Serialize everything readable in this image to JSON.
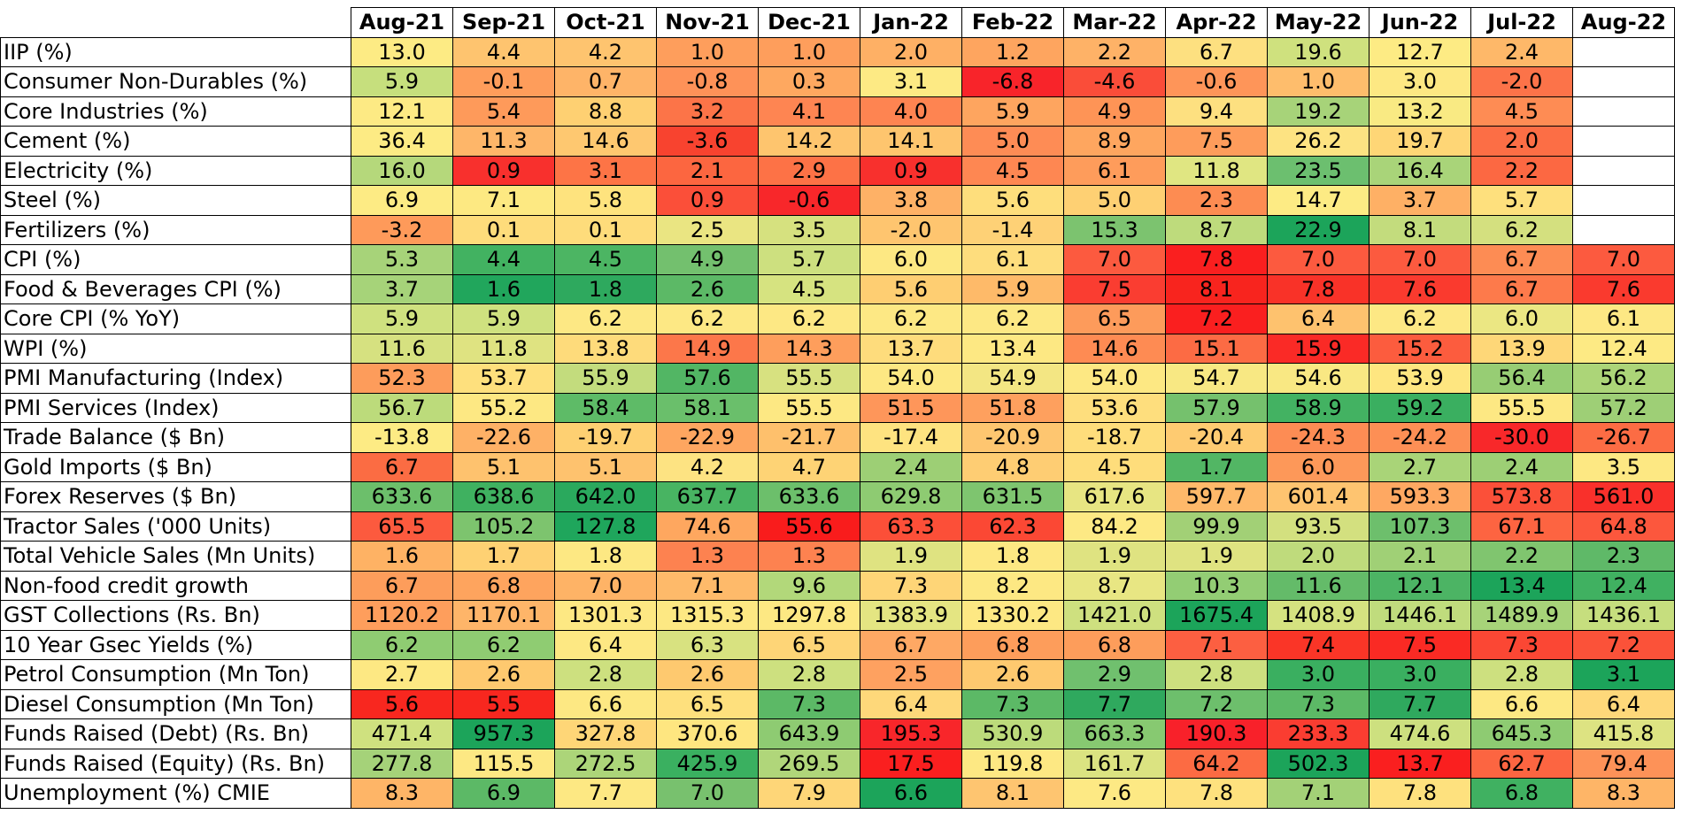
{
  "chart_data": {
    "type": "heatmap",
    "columns": [
      "Aug-21",
      "Sep-21",
      "Oct-21",
      "Nov-21",
      "Dec-21",
      "Jan-22",
      "Feb-22",
      "Mar-22",
      "Apr-22",
      "May-22",
      "Jun-22",
      "Jul-22",
      "Aug-22"
    ],
    "rows": [
      {
        "label": "IIP (%)",
        "values": [
          "13.0",
          "4.4",
          "4.2",
          "1.0",
          "1.0",
          "2.0",
          "1.2",
          "2.2",
          "6.7",
          "19.6",
          "12.7",
          "2.4",
          ""
        ],
        "colors": [
          "#fdeb84",
          "#fec46f",
          "#fec46f",
          "#fe9e5c",
          "#fe9e5c",
          "#feb065",
          "#fea55f",
          "#feb267",
          "#fde080",
          "#cfe17e",
          "#fdeb84",
          "#feb869",
          "#ffffff"
        ]
      },
      {
        "label": "Consumer Non-Durables (%)",
        "values": [
          "5.9",
          "-0.1",
          "0.7",
          "-0.8",
          "0.3",
          "3.1",
          "-6.8",
          "-4.6",
          "-0.6",
          "1.0",
          "3.0",
          "-2.0",
          ""
        ],
        "colors": [
          "#c6df7d",
          "#fe9d5b",
          "#feb468",
          "#fe9258",
          "#fea860",
          "#fdea84",
          "#f8242a",
          "#fa4d39",
          "#fe9559",
          "#febd6c",
          "#fde883",
          "#fc7349",
          "#ffffff"
        ]
      },
      {
        "label": "Core Industries (%)",
        "values": [
          "12.1",
          "5.4",
          "8.8",
          "3.2",
          "4.1",
          "4.0",
          "5.9",
          "4.9",
          "9.4",
          "19.2",
          "13.2",
          "4.5",
          ""
        ],
        "colors": [
          "#fdea84",
          "#fe9a5a",
          "#fed072",
          "#fc7448",
          "#fe8552",
          "#fe8451",
          "#fea55f",
          "#fe9456",
          "#fde080",
          "#a7d379",
          "#f9ea83",
          "#fe8c54",
          "#ffffff"
        ]
      },
      {
        "label": "Cement (%)",
        "values": [
          "36.4",
          "11.3",
          "14.6",
          "-3.6",
          "14.2",
          "14.1",
          "5.0",
          "8.9",
          "7.5",
          "26.2",
          "19.7",
          "2.0",
          ""
        ],
        "colors": [
          "#fdeb84",
          "#feb669",
          "#fec870",
          "#f8432f",
          "#fec56e",
          "#fec56e",
          "#fe8c55",
          "#fea65f",
          "#fe9c5b",
          "#fde382",
          "#fed676",
          "#fc6e45",
          "#ffffff"
        ]
      },
      {
        "label": "Electricity (%)",
        "values": [
          "16.0",
          "0.9",
          "3.1",
          "2.1",
          "2.9",
          "0.9",
          "4.5",
          "6.1",
          "11.8",
          "23.5",
          "16.4",
          "2.2",
          ""
        ],
        "colors": [
          "#b5d87b",
          "#f8302d",
          "#fd7446",
          "#fc6640",
          "#fd7246",
          "#f8302d",
          "#fe8752",
          "#fe9c5b",
          "#e0e682",
          "#6cbf6f",
          "#a9d479",
          "#fc6842",
          "#ffffff"
        ]
      },
      {
        "label": "Steel (%)",
        "values": [
          "6.9",
          "7.1",
          "5.8",
          "0.9",
          "-0.6",
          "3.8",
          "5.6",
          "5.0",
          "2.3",
          "14.7",
          "3.7",
          "5.7",
          ""
        ],
        "colors": [
          "#fdeb84",
          "#fde982",
          "#fee37e",
          "#fb4f39",
          "#f8272a",
          "#feb166",
          "#fede7c",
          "#fed073",
          "#fd8c52",
          "#fdeb84",
          "#feb065",
          "#fee07d",
          "#ffffff"
        ]
      },
      {
        "label": "Fertilizers (%)",
        "values": [
          "-3.2",
          "0.1",
          "0.1",
          "2.5",
          "3.5",
          "-2.0",
          "-1.4",
          "15.3",
          "8.7",
          "22.9",
          "8.1",
          "6.2",
          ""
        ],
        "colors": [
          "#fe9a5a",
          "#fedc7b",
          "#fedc7b",
          "#eae582",
          "#d6e17f",
          "#fec56f",
          "#fed176",
          "#7cc36f",
          "#bedb7c",
          "#1ca45a",
          "#c3dc7d",
          "#d4e07f",
          "#ffffff"
        ]
      },
      {
        "label": "CPI (%)",
        "values": [
          "5.3",
          "4.4",
          "4.5",
          "4.9",
          "5.7",
          "6.0",
          "6.1",
          "7.0",
          "7.8",
          "7.0",
          "7.0",
          "6.7",
          "7.0"
        ],
        "colors": [
          "#a7d379",
          "#42b261",
          "#4cb563",
          "#73c06e",
          "#cde07f",
          "#fde883",
          "#fedd7d",
          "#fc5a3f",
          "#fa1f1f",
          "#fc5a3f",
          "#fc5a3f",
          "#fd8c54",
          "#fc5a3f"
        ]
      },
      {
        "label": "Food & Beverages CPI (%)",
        "values": [
          "3.7",
          "1.6",
          "1.8",
          "2.6",
          "4.5",
          "5.6",
          "5.9",
          "7.5",
          "8.1",
          "7.8",
          "7.6",
          "6.7",
          "7.6"
        ],
        "colors": [
          "#a6d379",
          "#21a65c",
          "#2ea95e",
          "#5cb966",
          "#d6e380",
          "#fece72",
          "#feba69",
          "#fa3d31",
          "#f8241e",
          "#f93228",
          "#fa3a2e",
          "#fd7a4b",
          "#fa3a2e"
        ]
      },
      {
        "label": "Core CPI (% YoY)",
        "values": [
          "5.9",
          "5.9",
          "6.2",
          "6.2",
          "6.2",
          "6.2",
          "6.2",
          "6.5",
          "7.2",
          "6.4",
          "6.2",
          "6.0",
          "6.1"
        ],
        "colors": [
          "#cfe17f",
          "#cfe17f",
          "#fde884",
          "#fde884",
          "#fde884",
          "#fde884",
          "#fde884",
          "#fd9b5b",
          "#fa1f1f",
          "#fec26e",
          "#fde884",
          "#ebe783",
          "#fde884"
        ]
      },
      {
        "label": "WPI (%)",
        "values": [
          "11.6",
          "11.8",
          "13.8",
          "14.9",
          "14.3",
          "13.7",
          "13.4",
          "14.6",
          "15.1",
          "15.9",
          "15.2",
          "13.9",
          "12.4"
        ],
        "colors": [
          "#d6e180",
          "#dfe381",
          "#fedb7b",
          "#fc774a",
          "#fe9e5c",
          "#fedc7c",
          "#fde883",
          "#fe8b53",
          "#fc6b44",
          "#fa2a26",
          "#fc5c3e",
          "#fed778",
          "#fdea84"
        ]
      },
      {
        "label": "PMI Manufacturing (Index)",
        "values": [
          "52.3",
          "53.7",
          "55.9",
          "57.6",
          "55.5",
          "54.0",
          "54.9",
          "54.0",
          "54.7",
          "54.6",
          "53.9",
          "56.4",
          "56.2"
        ],
        "colors": [
          "#fd9c5b",
          "#fee07d",
          "#c3dc7d",
          "#52b664",
          "#d7e180",
          "#fde883",
          "#f3e683",
          "#fde883",
          "#f8e883",
          "#f9e883",
          "#fee680",
          "#97cd74",
          "#acd578"
        ]
      },
      {
        "label": "PMI Services (Index)",
        "values": [
          "56.7",
          "55.2",
          "58.4",
          "58.1",
          "55.5",
          "51.5",
          "51.8",
          "53.6",
          "57.9",
          "58.9",
          "59.2",
          "55.5",
          "57.2"
        ],
        "colors": [
          "#bcdb7b",
          "#fde883",
          "#5ebb67",
          "#6abf6b",
          "#fde883",
          "#fe965a",
          "#fea05e",
          "#fede7d",
          "#75c16d",
          "#43b262",
          "#3aaf60",
          "#fde883",
          "#9ecf76"
        ]
      },
      {
        "label": "Trade Balance ($ Bn)",
        "values": [
          "-13.8",
          "-22.6",
          "-19.7",
          "-22.9",
          "-21.7",
          "-17.4",
          "-20.9",
          "-18.7",
          "-20.4",
          "-24.3",
          "-24.2",
          "-30.0",
          "-26.7"
        ],
        "colors": [
          "#fdeb84",
          "#feb166",
          "#fed072",
          "#fea660",
          "#fec06c",
          "#fee380",
          "#fec670",
          "#fedd7b",
          "#fecb71",
          "#fd8c54",
          "#fd8f55",
          "#f8282a",
          "#fc6c44"
        ]
      },
      {
        "label": "Gold Imports ($ Bn)",
        "values": [
          "6.7",
          "5.1",
          "5.1",
          "4.2",
          "4.7",
          "2.4",
          "4.8",
          "4.5",
          "1.7",
          "6.0",
          "2.7",
          "2.4",
          "3.5"
        ],
        "colors": [
          "#fb6c43",
          "#fec26e",
          "#fec26e",
          "#fde382",
          "#fed375",
          "#9dcf75",
          "#fecd73",
          "#fedd7b",
          "#52b664",
          "#fd9859",
          "#a9d478",
          "#9dcf75",
          "#fde883"
        ]
      },
      {
        "label": "Forex Reserves ($ Bn)",
        "values": [
          "633.6",
          "638.6",
          "642.0",
          "637.7",
          "633.6",
          "629.8",
          "631.5",
          "617.6",
          "597.7",
          "601.4",
          "593.3",
          "573.8",
          "561.0"
        ],
        "colors": [
          "#6cbf6b",
          "#3fb160",
          "#2aa95d",
          "#48b462",
          "#6cbf6b",
          "#8ecb72",
          "#7ec56f",
          "#e7e582",
          "#feb96a",
          "#fec470",
          "#fea862",
          "#fb5039",
          "#f9302b"
        ]
      },
      {
        "label": "Tractor Sales ('000 Units)",
        "values": [
          "65.5",
          "105.2",
          "127.8",
          "74.6",
          "55.6",
          "63.3",
          "62.3",
          "84.2",
          "99.9",
          "93.5",
          "107.3",
          "67.1",
          "64.8"
        ],
        "colors": [
          "#fc5a3e",
          "#7dc46e",
          "#1fa65c",
          "#fea75f",
          "#f91c1c",
          "#fc4f38",
          "#fb4834",
          "#fde984",
          "#a2d076",
          "#d3e07f",
          "#6dbf6c",
          "#fd6441",
          "#fc573d"
        ]
      },
      {
        "label": "Total Vehicle Sales (Mn Units)",
        "values": [
          "1.6",
          "1.7",
          "1.8",
          "1.3",
          "1.3",
          "1.9",
          "1.8",
          "1.9",
          "1.9",
          "2.0",
          "2.1",
          "2.2",
          "2.3"
        ],
        "colors": [
          "#feb264",
          "#fed173",
          "#fde883",
          "#fd8250",
          "#fd8250",
          "#dfe381",
          "#fde883",
          "#dfe381",
          "#dfe381",
          "#bfdb7c",
          "#a0d076",
          "#80c56f",
          "#5fb968"
        ]
      },
      {
        "label": "Non-food credit growth",
        "values": [
          "6.7",
          "6.8",
          "7.0",
          "7.1",
          "9.6",
          "7.3",
          "8.2",
          "8.7",
          "10.3",
          "11.6",
          "12.1",
          "13.4",
          "12.4"
        ],
        "colors": [
          "#fd9d5b",
          "#fea45e",
          "#feb366",
          "#feba6a",
          "#b2d87a",
          "#fed577",
          "#fde883",
          "#e8e683",
          "#93cd74",
          "#64bb69",
          "#4cb464",
          "#1ca45a",
          "#40b161"
        ]
      },
      {
        "label": "GST Collections (Rs. Bn)",
        "values": [
          "1120.2",
          "1170.1",
          "1301.3",
          "1315.3",
          "1297.8",
          "1383.9",
          "1330.2",
          "1421.0",
          "1675.4",
          "1408.9",
          "1446.1",
          "1489.9",
          "1436.1"
        ],
        "colors": [
          "#fe9e5c",
          "#feb569",
          "#fde883",
          "#fde883",
          "#fde883",
          "#e4e582",
          "#fde883",
          "#cee07f",
          "#1ca45a",
          "#d5e280",
          "#c0dc7d",
          "#a7d379",
          "#c6de7e"
        ]
      },
      {
        "label": "10 Year Gsec Yields (%)",
        "values": [
          "6.2",
          "6.2",
          "6.4",
          "6.3",
          "6.5",
          "6.7",
          "6.8",
          "6.8",
          "7.1",
          "7.4",
          "7.5",
          "7.3",
          "7.2"
        ],
        "colors": [
          "#8fcc72",
          "#8fcc72",
          "#fde883",
          "#d8e280",
          "#fed577",
          "#fea864",
          "#fd9d5b",
          "#fd9d5b",
          "#fc5f41",
          "#fa3527",
          "#fa2a24",
          "#fb4734",
          "#fb5239"
        ]
      },
      {
        "label": "Petrol Consumption (Mn Ton)",
        "values": [
          "2.7",
          "2.6",
          "2.8",
          "2.6",
          "2.8",
          "2.5",
          "2.6",
          "2.9",
          "2.8",
          "3.0",
          "3.0",
          "2.8",
          "3.1"
        ],
        "colors": [
          "#fde883",
          "#fec96f",
          "#cde07f",
          "#fec96f",
          "#cde07f",
          "#fea160",
          "#fec96f",
          "#70c06e",
          "#cde07f",
          "#3aaf60",
          "#3aaf60",
          "#cde07f",
          "#1ca45a"
        ]
      },
      {
        "label": "Diesel Consumption (Mn Ton)",
        "values": [
          "5.6",
          "5.5",
          "6.6",
          "6.5",
          "7.3",
          "6.4",
          "7.3",
          "7.7",
          "7.2",
          "7.3",
          "7.7",
          "6.6",
          "6.4"
        ],
        "colors": [
          "#f8271f",
          "#f8271f",
          "#fde883",
          "#fee07d",
          "#5cb966",
          "#fed87a",
          "#5cb966",
          "#2fa95e",
          "#6dbf6c",
          "#5cb966",
          "#2fa95e",
          "#fde883",
          "#fed87a"
        ]
      },
      {
        "label": "Funds Raised (Debt) (Rs. Bn)",
        "values": [
          "471.4",
          "957.3",
          "327.8",
          "370.6",
          "643.9",
          "195.3",
          "530.9",
          "663.3",
          "190.3",
          "233.3",
          "474.6",
          "645.3",
          "415.8"
        ],
        "colors": [
          "#cfe17f",
          "#1ca45a",
          "#fed677",
          "#fee680",
          "#8ecb72",
          "#f8262a",
          "#bcdb7b",
          "#87c971",
          "#f8212a",
          "#fa3d31",
          "#cde07f",
          "#8ecb72",
          "#dde382"
        ]
      },
      {
        "label": "Funds Raised (Equity) (Rs. Bn)",
        "values": [
          "277.8",
          "115.5",
          "272.5",
          "425.9",
          "269.5",
          "17.5",
          "119.8",
          "161.7",
          "64.2",
          "502.3",
          "13.7",
          "62.7",
          "79.4"
        ],
        "colors": [
          "#a5d279",
          "#fde883",
          "#acd579",
          "#3ab060",
          "#b0d67a",
          "#fa1f1f",
          "#fde883",
          "#dbe381",
          "#fc6b43",
          "#1ca45a",
          "#fa1f1f",
          "#fc6541",
          "#fd9258"
        ]
      },
      {
        "label": "Unemployment (%) CMIE",
        "values": [
          "8.3",
          "6.9",
          "7.7",
          "7.0",
          "7.9",
          "6.6",
          "8.1",
          "7.6",
          "7.8",
          "7.1",
          "7.8",
          "6.8",
          "8.3"
        ],
        "colors": [
          "#feb567",
          "#5cb966",
          "#fde883",
          "#78c16e",
          "#fed678",
          "#1ca45a",
          "#fec570",
          "#fde984",
          "#fee17e",
          "#a3d177",
          "#fee17e",
          "#40b161",
          "#feb567"
        ]
      }
    ]
  }
}
